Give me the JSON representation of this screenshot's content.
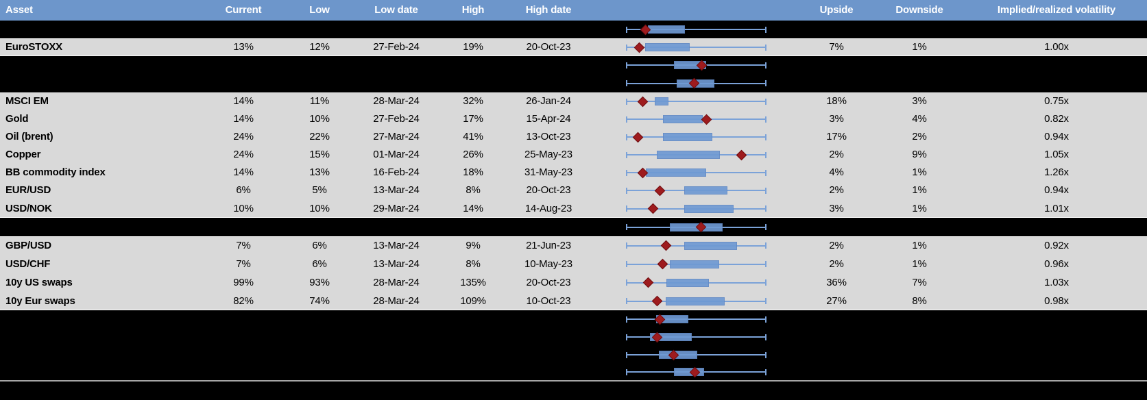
{
  "header": {
    "asset": "Asset",
    "current": "Current",
    "low": "Low",
    "low_date": "Low date",
    "high": "High",
    "high_date": "High date",
    "upside": "Upside",
    "downside": "Downside",
    "vol": "Implied/realized volatility"
  },
  "colors": {
    "header_bg": "#6d96cb",
    "row_bg": "#d9d9d9",
    "hidden_bg": "#000000",
    "box_fill": "#6f9ad3",
    "box_border": "#6189c5",
    "whisker": "#7ba2d8",
    "marker": "#9e1b1e",
    "marker_border": "#6e0f12",
    "separator": "#a6a6a6"
  },
  "rows": [
    {
      "box": {
        "lo": 0.156,
        "hi": 0.41,
        "m": 0.137
      }
    },
    {
      "asset": "EuroSTOXX",
      "current": "13%",
      "low": "12%",
      "low_date": "27-Feb-24",
      "high": "19%",
      "high_date": "20-Oct-23",
      "upside": "7%",
      "downside": "1%",
      "vol": "1.00x",
      "box": {
        "lo": 0.137,
        "hi": 0.444,
        "m": 0.093
      }
    },
    {
      "box": {
        "lo": 0.341,
        "hi": 0.561,
        "m": 0.537
      }
    },
    {
      "box": {
        "lo": 0.361,
        "hi": 0.62,
        "m": 0.483
      }
    },
    {
      "asset": "MSCI EM",
      "current": "14%",
      "low": "11%",
      "low_date": "28-Mar-24",
      "high": "32%",
      "high_date": "26-Jan-24",
      "upside": "18%",
      "downside": "3%",
      "vol": "0.75x",
      "box": {
        "lo": 0.205,
        "hi": 0.293,
        "m": 0.117
      }
    },
    {
      "asset": "Gold",
      "current": "14%",
      "low": "10%",
      "low_date": "27-Feb-24",
      "high": "17%",
      "high_date": "15-Apr-24",
      "upside": "3%",
      "downside": "4%",
      "vol": "0.82x",
      "box": {
        "lo": 0.263,
        "hi": 0.537,
        "m": 0.571
      }
    },
    {
      "asset": "Oil (brent)",
      "current": "24%",
      "low": "22%",
      "low_date": "27-Mar-24",
      "high": "41%",
      "high_date": "13-Oct-23",
      "upside": "17%",
      "downside": "2%",
      "vol": "0.94x",
      "box": {
        "lo": 0.263,
        "hi": 0.605,
        "m": 0.083
      }
    },
    {
      "asset": "Copper",
      "current": "24%",
      "low": "15%",
      "low_date": "01-Mar-24",
      "high": "26%",
      "high_date": "25-May-23",
      "upside": "2%",
      "downside": "9%",
      "vol": "1.05x",
      "box": {
        "lo": 0.22,
        "hi": 0.659,
        "m": 0.824
      }
    },
    {
      "asset": "BB commodity index",
      "current": "14%",
      "low": "13%",
      "low_date": "16-Feb-24",
      "high": "18%",
      "high_date": "31-May-23",
      "upside": "4%",
      "downside": "1%",
      "vol": "1.26x",
      "box": {
        "lo": 0.141,
        "hi": 0.561,
        "m": 0.117
      }
    },
    {
      "asset": "EUR/USD",
      "current": "6%",
      "low": "5%",
      "low_date": "13-Mar-24",
      "high": "8%",
      "high_date": "20-Oct-23",
      "upside": "2%",
      "downside": "1%",
      "vol": "0.94x",
      "box": {
        "lo": 0.415,
        "hi": 0.712,
        "m": 0.239
      }
    },
    {
      "asset": "USD/NOK",
      "current": "10%",
      "low": "10%",
      "low_date": "29-Mar-24",
      "high": "14%",
      "high_date": "14-Aug-23",
      "upside": "3%",
      "downside": "1%",
      "vol": "1.01x",
      "box": {
        "lo": 0.415,
        "hi": 0.756,
        "m": 0.19
      }
    },
    {
      "box": {
        "lo": 0.312,
        "hi": 0.678,
        "m": 0.532
      }
    },
    {
      "asset": "GBP/USD",
      "current": "7%",
      "low": "6%",
      "low_date": "13-Mar-24",
      "high": "9%",
      "high_date": "21-Jun-23",
      "upside": "2%",
      "downside": "1%",
      "vol": "0.92x",
      "box": {
        "lo": 0.415,
        "hi": 0.78,
        "m": 0.283
      }
    },
    {
      "asset": "USD/CHF",
      "current": "7%",
      "low": "6%",
      "low_date": "13-Mar-24",
      "high": "8%",
      "high_date": "10-May-23",
      "upside": "2%",
      "downside": "1%",
      "vol": "0.96x",
      "box": {
        "lo": 0.312,
        "hi": 0.654,
        "m": 0.259
      }
    },
    {
      "asset": "10y US swaps",
      "current": "99%",
      "low": "93%",
      "low_date": "28-Mar-24",
      "high": "135%",
      "high_date": "20-Oct-23",
      "upside": "36%",
      "downside": "7%",
      "vol": "1.03x",
      "box": {
        "lo": 0.288,
        "hi": 0.58,
        "m": 0.156
      }
    },
    {
      "asset": "10y Eur swaps",
      "current": "82%",
      "low": "74%",
      "low_date": "28-Mar-24",
      "high": "109%",
      "high_date": "10-Oct-23",
      "upside": "27%",
      "downside": "8%",
      "vol": "0.98x",
      "box": {
        "lo": 0.283,
        "hi": 0.693,
        "m": 0.22
      }
    },
    {
      "box": {
        "lo": 0.215,
        "hi": 0.434,
        "m": 0.239
      }
    },
    {
      "box": {
        "lo": 0.171,
        "hi": 0.459,
        "m": 0.224
      }
    },
    {
      "box": {
        "lo": 0.234,
        "hi": 0.498,
        "m": 0.341
      }
    },
    {
      "box": {
        "lo": 0.341,
        "hi": 0.546,
        "m": 0.488
      }
    }
  ],
  "chart_data": {
    "type": "table",
    "columns": [
      "Asset",
      "Current",
      "Low",
      "Low date",
      "High",
      "High date",
      "Upside",
      "Downside",
      "Implied/realized volatility"
    ],
    "rows": [
      [
        "EuroSTOXX",
        "13%",
        "12%",
        "27-Feb-24",
        "19%",
        "20-Oct-23",
        "7%",
        "1%",
        "1.00x"
      ],
      [
        "MSCI EM",
        "14%",
        "11%",
        "28-Mar-24",
        "32%",
        "26-Jan-24",
        "18%",
        "3%",
        "0.75x"
      ],
      [
        "Gold",
        "14%",
        "10%",
        "27-Feb-24",
        "17%",
        "15-Apr-24",
        "3%",
        "4%",
        "0.82x"
      ],
      [
        "Oil (brent)",
        "24%",
        "22%",
        "27-Mar-24",
        "41%",
        "13-Oct-23",
        "17%",
        "2%",
        "0.94x"
      ],
      [
        "Copper",
        "24%",
        "15%",
        "01-Mar-24",
        "26%",
        "25-May-23",
        "2%",
        "9%",
        "1.05x"
      ],
      [
        "BB commodity index",
        "14%",
        "13%",
        "16-Feb-24",
        "18%",
        "31-May-23",
        "4%",
        "1%",
        "1.26x"
      ],
      [
        "EUR/USD",
        "6%",
        "5%",
        "13-Mar-24",
        "8%",
        "20-Oct-23",
        "2%",
        "1%",
        "0.94x"
      ],
      [
        "USD/NOK",
        "10%",
        "10%",
        "29-Mar-24",
        "14%",
        "14-Aug-23",
        "3%",
        "1%",
        "1.01x"
      ],
      [
        "GBP/USD",
        "7%",
        "6%",
        "13-Mar-24",
        "9%",
        "21-Jun-23",
        "2%",
        "1%",
        "0.92x"
      ],
      [
        "USD/CHF",
        "7%",
        "6%",
        "13-Mar-24",
        "8%",
        "10-May-23",
        "2%",
        "1%",
        "0.96x"
      ],
      [
        "10y US swaps",
        "99%",
        "93%",
        "28-Mar-24",
        "135%",
        "20-Oct-23",
        "36%",
        "7%",
        "1.03x"
      ],
      [
        "10y Eur swaps",
        "82%",
        "74%",
        "28-Mar-24",
        "109%",
        "10-Oct-23",
        "27%",
        "8%",
        "0.98x"
      ]
    ],
    "boxplot_column": {
      "note": "Each table row (including unlabeled black rows) shows a horizontal box plot; whiskers span the full normalized range 0-1, values below are fractions of that range",
      "series": [
        {
          "label": null,
          "box_low": 0.156,
          "box_high": 0.41,
          "marker": 0.137
        },
        {
          "label": "EuroSTOXX",
          "box_low": 0.137,
          "box_high": 0.444,
          "marker": 0.093
        },
        {
          "label": null,
          "box_low": 0.341,
          "box_high": 0.561,
          "marker": 0.537
        },
        {
          "label": null,
          "box_low": 0.361,
          "box_high": 0.62,
          "marker": 0.483
        },
        {
          "label": "MSCI EM",
          "box_low": 0.205,
          "box_high": 0.293,
          "marker": 0.117
        },
        {
          "label": "Gold",
          "box_low": 0.263,
          "box_high": 0.537,
          "marker": 0.571
        },
        {
          "label": "Oil (brent)",
          "box_low": 0.263,
          "box_high": 0.605,
          "marker": 0.083
        },
        {
          "label": "Copper",
          "box_low": 0.22,
          "box_high": 0.659,
          "marker": 0.824
        },
        {
          "label": "BB commodity index",
          "box_low": 0.141,
          "box_high": 0.561,
          "marker": 0.117
        },
        {
          "label": "EUR/USD",
          "box_low": 0.415,
          "box_high": 0.712,
          "marker": 0.239
        },
        {
          "label": "USD/NOK",
          "box_low": 0.415,
          "box_high": 0.756,
          "marker": 0.19
        },
        {
          "label": null,
          "box_low": 0.312,
          "box_high": 0.678,
          "marker": 0.532
        },
        {
          "label": "GBP/USD",
          "box_low": 0.415,
          "box_high": 0.78,
          "marker": 0.283
        },
        {
          "label": "USD/CHF",
          "box_low": 0.312,
          "box_high": 0.654,
          "marker": 0.259
        },
        {
          "label": "10y US swaps",
          "box_low": 0.288,
          "box_high": 0.58,
          "marker": 0.156
        },
        {
          "label": "10y Eur swaps",
          "box_low": 0.283,
          "box_high": 0.693,
          "marker": 0.22
        },
        {
          "label": null,
          "box_low": 0.215,
          "box_high": 0.434,
          "marker": 0.239
        },
        {
          "label": null,
          "box_low": 0.171,
          "box_high": 0.459,
          "marker": 0.224
        },
        {
          "label": null,
          "box_low": 0.234,
          "box_high": 0.498,
          "marker": 0.341
        },
        {
          "label": null,
          "box_low": 0.341,
          "box_high": 0.546,
          "marker": 0.488
        }
      ]
    }
  }
}
